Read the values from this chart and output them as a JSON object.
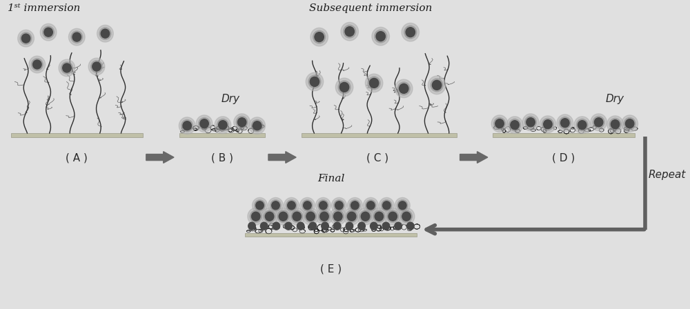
{
  "bg_color": "#e0e0e0",
  "panel_labels": [
    "( A )",
    "( B )",
    "( C )",
    "( D )",
    "( E )"
  ],
  "top_label_A": "1ˢᵗ immersion",
  "top_label_C": "Subsequent immersion",
  "top_label_E": "Final",
  "dry_label": "Dry",
  "repeat_label": "Repeat",
  "arrow_color": "#606060",
  "substrate_color": "#c0c0a8",
  "brush_color": "#1a1a1a",
  "brush_color2": "#333333",
  "np_dark": "#484848",
  "np_mid": "#888888",
  "np_light": "#b0b0b0",
  "label_fontsize": 11,
  "sublabel_fontsize": 11
}
